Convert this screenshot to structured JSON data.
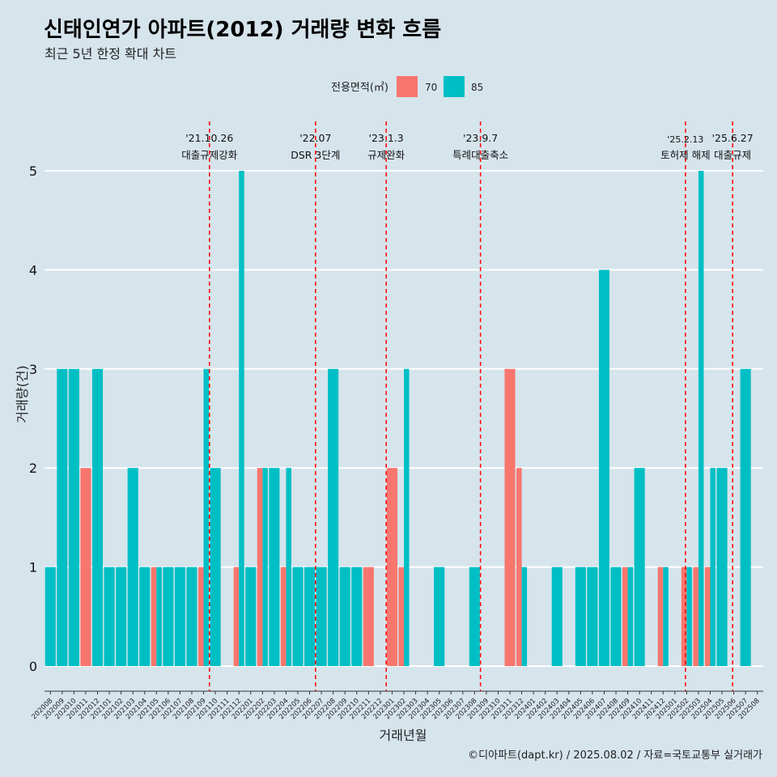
{
  "header": {
    "title": "신태인연가 아파트(2012) 거래량 변화 흐름",
    "subtitle": "최근 5년 한정 확대 차트"
  },
  "caption": "©디아파트(dapt.kr) / 2025.08.02 / 자료=국토교통부 실거래가",
  "chart_data": {
    "type": "bar",
    "xlabel": "거래년월",
    "ylabel": "거래량(건)",
    "ylim": [
      -0.5,
      5.5
    ],
    "yticks": [
      0,
      1,
      2,
      3,
      4,
      5
    ],
    "grid": true,
    "legend": {
      "title": "전용면적(㎡)",
      "placement": "top",
      "entries": [
        {
          "name": "70",
          "color": "#f8766d"
        },
        {
          "name": "85",
          "color": "#00bfc4"
        }
      ]
    },
    "categories": [
      "202008",
      "202009",
      "202010",
      "202011",
      "202012",
      "202101",
      "202102",
      "202103",
      "202104",
      "202105",
      "202106",
      "202107",
      "202108",
      "202109",
      "202110",
      "202111",
      "202112",
      "202201",
      "202202",
      "202203",
      "202204",
      "202205",
      "202206",
      "202207",
      "202208",
      "202209",
      "202210",
      "202211",
      "202212",
      "202301",
      "202302",
      "202303",
      "202304",
      "202305",
      "202306",
      "202307",
      "202308",
      "202309",
      "202310",
      "202311",
      "202312",
      "202401",
      "202402",
      "202403",
      "202404",
      "202405",
      "202406",
      "202407",
      "202408",
      "202409",
      "202410",
      "202411",
      "202412",
      "202501",
      "202502",
      "202503",
      "202504",
      "202505",
      "202506",
      "202507",
      "202508"
    ],
    "series": [
      {
        "name": "70",
        "color": "#f8766d",
        "values": [
          0,
          0,
          0,
          2,
          0,
          0,
          0,
          0,
          0,
          1,
          0,
          0,
          0,
          1,
          0,
          0,
          1,
          0,
          2,
          0,
          1,
          0,
          0,
          0,
          0,
          0,
          0,
          1,
          0,
          2,
          1,
          0,
          0,
          0,
          0,
          0,
          0,
          0,
          0,
          3,
          2,
          0,
          0,
          0,
          0,
          0,
          0,
          0,
          0,
          1,
          0,
          0,
          1,
          0,
          1,
          1,
          1,
          0,
          0,
          0,
          0
        ]
      },
      {
        "name": "85",
        "color": "#00bfc4",
        "values": [
          1,
          3,
          3,
          0,
          3,
          1,
          1,
          2,
          1,
          1,
          1,
          1,
          1,
          3,
          2,
          0,
          5,
          1,
          2,
          2,
          2,
          1,
          1,
          1,
          3,
          1,
          1,
          0,
          0,
          0,
          3,
          0,
          0,
          1,
          0,
          0,
          1,
          0,
          0,
          0,
          1,
          0,
          0,
          1,
          0,
          1,
          1,
          4,
          1,
          1,
          2,
          0,
          1,
          0,
          1,
          5,
          2,
          2,
          0,
          3,
          0
        ]
      }
    ],
    "annotations": [
      {
        "x": 14.0,
        "label1": "'21.10.26",
        "label2": "대출규제강화"
      },
      {
        "x": 23.0,
        "label1": "'22.07",
        "label2": "DSR 3단계"
      },
      {
        "x": 29.0,
        "label1": "'23.1.3",
        "label2": "규제완화"
      },
      {
        "x": 37.0,
        "label1": "'23.9.7",
        "label2": "특례대출축소"
      },
      {
        "x": 54.4,
        "label1": "'25.2.13",
        "label2": "토허제 해제"
      },
      {
        "x": 58.4,
        "label1": "'25.6.27",
        "label2": "대출규제"
      }
    ]
  }
}
